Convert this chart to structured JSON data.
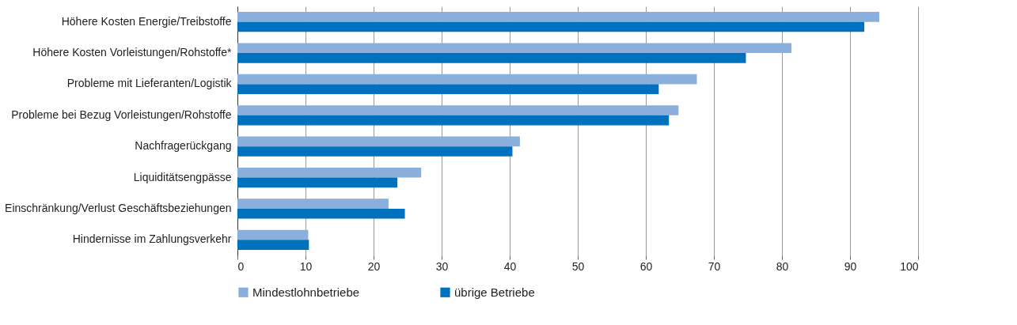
{
  "chart_data": {
    "type": "bar",
    "orientation": "horizontal",
    "categories": [
      "Höhere Kosten Energie/Treibstoffe",
      "Höhere Kosten Vorleistungen/Rohstoffe*",
      "Probleme mit Lieferanten/Logistik",
      "Probleme bei Bezug Vorleistungen/Rohstoffe",
      "Nachfragerückgang",
      "Liquiditätsengpässe",
      "Einschränkung/Verlust Geschäftsbeziehungen",
      "Hindernisse im Zahlungsverkehr"
    ],
    "series": [
      {
        "name": "Mindestlohnbetriebe",
        "color": "#8aafdd",
        "values": [
          94.3,
          81.4,
          67.5,
          64.8,
          41.5,
          27.0,
          22.2,
          10.4
        ]
      },
      {
        "name": "übrige Betriebe",
        "color": "#0071bc",
        "values": [
          92.1,
          74.7,
          61.9,
          63.4,
          40.4,
          23.5,
          24.6,
          10.5
        ]
      }
    ],
    "xlim": [
      0,
      100
    ],
    "xticks": [
      0,
      10,
      20,
      30,
      40,
      50,
      60,
      70,
      80,
      90,
      100
    ],
    "grid": "x",
    "legend": "bottom"
  }
}
